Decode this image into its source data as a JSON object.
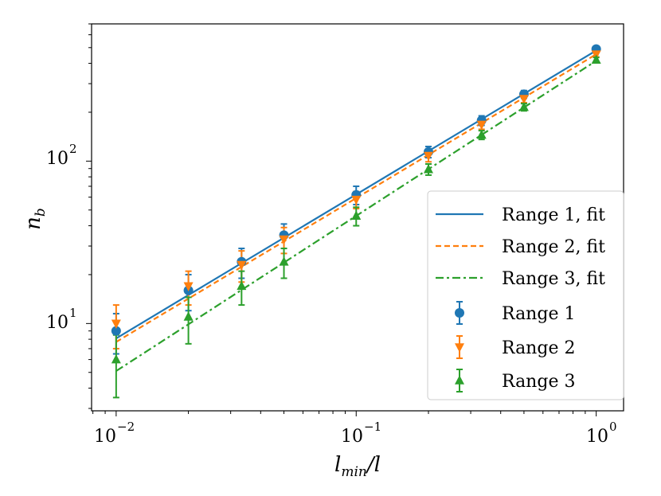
{
  "chart_data": {
    "type": "scatter",
    "xscale": "log",
    "yscale": "log",
    "xlim": [
      0.0079,
      1.3
    ],
    "ylim": [
      2.9,
      700
    ],
    "xlabel_main": "l",
    "xlabel_sub": "min",
    "xlabel_tail": "/l",
    "ylabel_main": "n",
    "ylabel_sub": "b",
    "x_ticks": [
      {
        "value": 0.01,
        "base": "10",
        "exp": "−2"
      },
      {
        "value": 0.1,
        "base": "10",
        "exp": "−1"
      },
      {
        "value": 1,
        "base": "10",
        "exp": "0"
      }
    ],
    "y_ticks": [
      {
        "value": 10,
        "base": "10",
        "exp": "1"
      },
      {
        "value": 100,
        "base": "10",
        "exp": "2"
      }
    ],
    "x": [
      0.01,
      0.02,
      0.0333,
      0.05,
      0.1,
      0.2,
      0.333,
      0.5,
      1.0
    ],
    "series": [
      {
        "name": "Range 1",
        "fit_name": "Range 1, fit",
        "color": "#1f77b4",
        "marker": "circle",
        "fit_style": "solid",
        "values": [
          9.0,
          16.0,
          24.0,
          35.0,
          62.0,
          114.0,
          178.0,
          258.0,
          490.0
        ],
        "err": [
          2.5,
          4.0,
          5.0,
          6.0,
          8.0,
          9.0,
          12.0,
          14.0,
          18.0
        ],
        "fit_endpoints": [
          [
            0.01,
            8.1
          ],
          [
            1.0,
            480.0
          ]
        ]
      },
      {
        "name": "Range 2",
        "fit_name": "Range 2, fit",
        "color": "#ff7f0e",
        "marker": "triangle-down",
        "fit_style": "dashed",
        "values": [
          10.0,
          17.0,
          23.0,
          33.0,
          58.0,
          108.0,
          168.0,
          242.0,
          455.0
        ],
        "err": [
          3.0,
          4.0,
          5.0,
          6.0,
          7.0,
          9.0,
          11.0,
          13.0,
          17.0
        ],
        "fit_endpoints": [
          [
            0.01,
            7.7
          ],
          [
            1.0,
            455.0
          ]
        ]
      },
      {
        "name": "Range 3",
        "fit_name": "Range 3, fit",
        "color": "#2ca02c",
        "marker": "triangle-up",
        "fit_style": "dashdot",
        "values": [
          6.0,
          11.0,
          17.0,
          24.0,
          46.0,
          89.0,
          145.0,
          215.0,
          420.0
        ],
        "err": [
          2.5,
          3.5,
          4.0,
          5.0,
          6.0,
          7.0,
          9.0,
          11.0,
          15.0
        ],
        "fit_endpoints": [
          [
            0.01,
            5.1
          ],
          [
            1.0,
            415.0
          ]
        ]
      }
    ],
    "legend": "lower right"
  }
}
